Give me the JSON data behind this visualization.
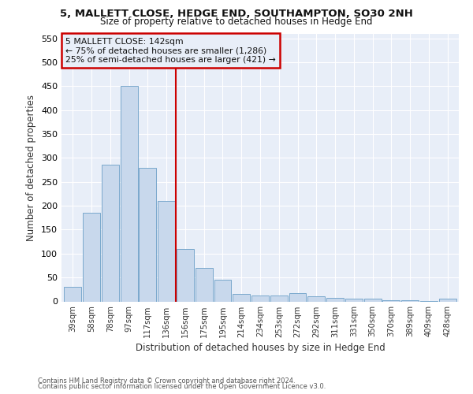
{
  "title": "5, MALLETT CLOSE, HEDGE END, SOUTHAMPTON, SO30 2NH",
  "subtitle": "Size of property relative to detached houses in Hedge End",
  "xlabel": "Distribution of detached houses by size in Hedge End",
  "ylabel": "Number of detached properties",
  "categories": [
    "39sqm",
    "58sqm",
    "78sqm",
    "97sqm",
    "117sqm",
    "136sqm",
    "156sqm",
    "175sqm",
    "195sqm",
    "214sqm",
    "234sqm",
    "253sqm",
    "272sqm",
    "292sqm",
    "311sqm",
    "331sqm",
    "350sqm",
    "370sqm",
    "389sqm",
    "409sqm",
    "428sqm"
  ],
  "values": [
    30,
    185,
    285,
    450,
    280,
    210,
    110,
    70,
    45,
    15,
    12,
    13,
    18,
    10,
    8,
    5,
    5,
    3,
    3,
    1,
    5
  ],
  "bar_color": "#c8d8ec",
  "bar_edge_color": "#7aa8cc",
  "vline_x": 5.5,
  "vline_color": "#cc0000",
  "annotation_title": "5 MALLETT CLOSE: 142sqm",
  "annotation_line1": "← 75% of detached houses are smaller (1,286)",
  "annotation_line2": "25% of semi-detached houses are larger (421) →",
  "annotation_box_color": "#cc0000",
  "footnote1": "Contains HM Land Registry data © Crown copyright and database right 2024.",
  "footnote2": "Contains public sector information licensed under the Open Government Licence v3.0.",
  "ylim": [
    0,
    560
  ],
  "yticks": [
    0,
    50,
    100,
    150,
    200,
    250,
    300,
    350,
    400,
    450,
    500,
    550
  ],
  "fig_background_color": "#ffffff",
  "plot_background_color": "#e8eef8",
  "grid_color": "#ffffff"
}
